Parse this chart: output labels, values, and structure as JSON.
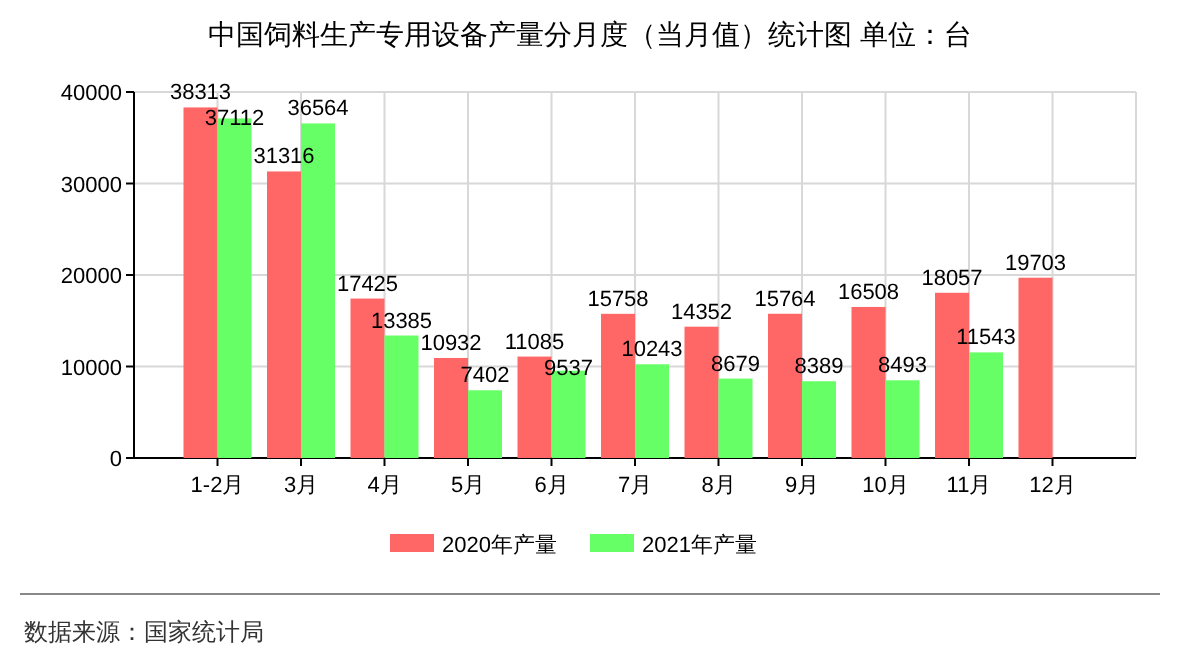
{
  "chart_data": {
    "type": "bar",
    "title": "中国饲料生产专用设备产量分月度（当月值）统计图 单位：台",
    "categories": [
      "1-2月",
      "3月",
      "4月",
      "5月",
      "6月",
      "7月",
      "8月",
      "9月",
      "10月",
      "11月",
      "12月"
    ],
    "series": [
      {
        "name": "2020年产量",
        "color": "#ff6666",
        "values": [
          38313,
          31316,
          17425,
          10932,
          11085,
          15758,
          14352,
          15764,
          16508,
          18057,
          19703
        ]
      },
      {
        "name": "2021年产量",
        "color": "#66ff66",
        "values": [
          37112,
          36564,
          13385,
          7402,
          9537,
          10243,
          8679,
          8389,
          8493,
          11543,
          null
        ]
      }
    ],
    "ylim": [
      0,
      40000
    ],
    "yticks": [
      0,
      10000,
      20000,
      30000,
      40000
    ],
    "grid": true,
    "legend": "bottom",
    "data_labels": true,
    "annotations": [
      "数据来源：国家统计局"
    ]
  }
}
